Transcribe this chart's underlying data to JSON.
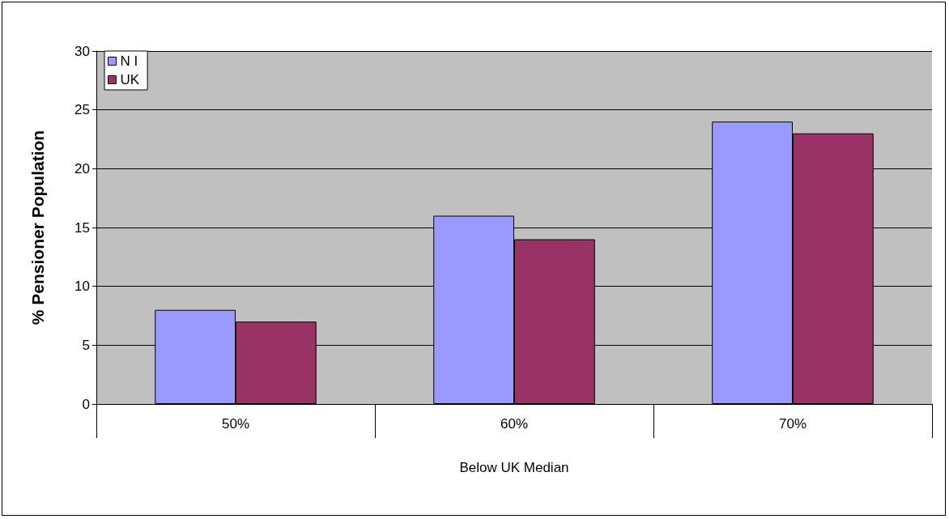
{
  "chart_data": {
    "type": "bar",
    "xlabel": "Below UK Median",
    "ylabel": "% Pensioner Population",
    "categories": [
      "50%",
      "60%",
      "70%"
    ],
    "series": [
      {
        "name": "N I",
        "color": "#9999ff",
        "values": [
          8,
          16,
          24
        ]
      },
      {
        "name": "UK",
        "color": "#993366",
        "values": [
          7,
          14,
          23
        ]
      }
    ],
    "ylim": [
      0,
      30
    ],
    "yticks": [
      0,
      5,
      10,
      15,
      20,
      25,
      30
    ],
    "grid": "y",
    "legend": "top left"
  }
}
